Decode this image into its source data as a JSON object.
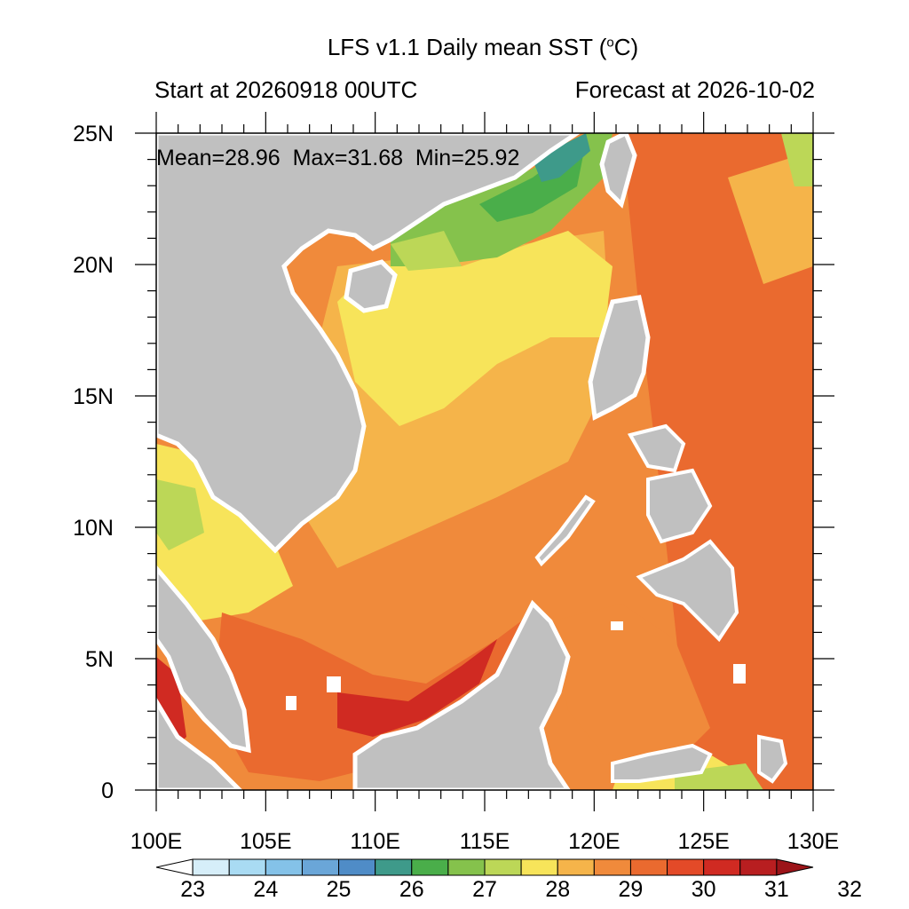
{
  "header": {
    "title_main": "LFS v1.1 Daily mean SST (",
    "title_unit_sup": "o",
    "title_unit_end": "C)",
    "start_label": "Start at 20260918 00UTC",
    "forecast_label": "Forecast at 2026-10-02"
  },
  "stats": {
    "mean": "Mean=28.96",
    "max": "Max=31.68",
    "min": "Min=25.92"
  },
  "axes": {
    "x_ticks": [
      "100E",
      "105E",
      "110E",
      "115E",
      "120E",
      "125E",
      "130E"
    ],
    "y_ticks": [
      "25N",
      "20N",
      "15N",
      "10N",
      "5N",
      "0"
    ],
    "x_range": [
      100,
      130
    ],
    "y_range": [
      0,
      25
    ]
  },
  "colorbar": {
    "labels": [
      "23",
      "24",
      "25",
      "26",
      "27",
      "28",
      "29",
      "30",
      "31",
      "32"
    ],
    "colors": [
      "#ffffff",
      "#d6eef9",
      "#a9dbf3",
      "#84c2e8",
      "#6aa6d8",
      "#4f8cc7",
      "#3e9a8a",
      "#4aae4a",
      "#85c24c",
      "#bcd757",
      "#f7e45a",
      "#f5b44a",
      "#f08a3b",
      "#ea6a2f",
      "#e34a28",
      "#d02a22",
      "#b81e20",
      "#9c1419"
    ]
  },
  "colors": {
    "land": "#c0c0c0",
    "sst_low": "#4aae4a",
    "sst_mid": "#f7e45a",
    "sst_high": "#ea6a2f"
  }
}
